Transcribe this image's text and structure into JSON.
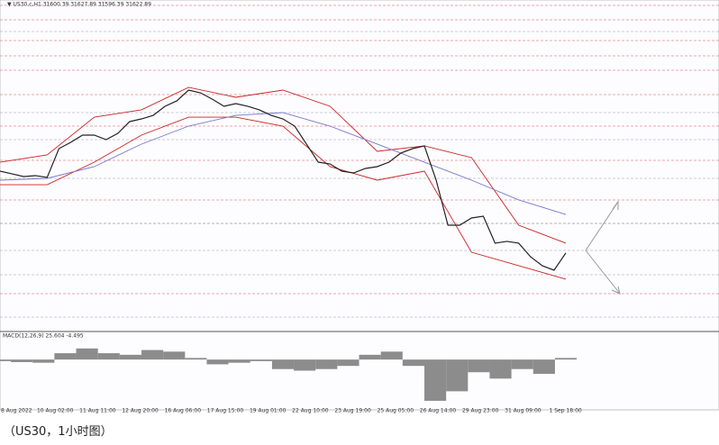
{
  "caption": "（US30，1小时图）",
  "chart_data": [
    {
      "type": "line",
      "title": "▼ US30.c,H1 31600.39 31627.89 31596.39 31622.89",
      "ylim": [
        30400,
        35700
      ],
      "xtick_labels": [
        "8 Aug 2022",
        "10 Aug 02:00",
        "11 Aug 11:00",
        "12 Aug 20:00",
        "16 Aug 06:00",
        "17 Aug 15:00",
        "19 Aug 01:00",
        "22 Aug 10:00",
        "23 Aug 19:00",
        "25 Aug 05:00",
        "26 Aug 14:00",
        "29 Aug 23:00",
        "31 Aug 09:00",
        "1 Sep 18:00"
      ],
      "series": [
        {
          "color": "#cc2222",
          "values": [
            33086,
            33203,
            33812,
            33929,
            34292,
            34132,
            34248,
            33987,
            33261,
            33348,
            33159,
            32070,
            31780
          ]
        },
        {
          "color": "#cc2222",
          "values": [
            32723,
            32723,
            33086,
            33522,
            33812,
            33812,
            33667,
            33014,
            32796,
            32941,
            31634,
            31417,
            31199
          ]
        },
        {
          "color": "#7777cc",
          "values": [
            32796,
            32825,
            33014,
            33377,
            33667,
            33841,
            33885,
            33667,
            33377,
            33086,
            32796,
            32477,
            32244
          ]
        },
        {
          "color": "#222222",
          "values": [
            32941,
            32898,
            32854,
            32869,
            32840,
            33304,
            33406,
            33522,
            33522,
            33449,
            33551,
            33740,
            33783,
            33841,
            33987,
            34074,
            34248,
            34204,
            34103,
            33987,
            34030,
            33987,
            33929,
            33841,
            33783,
            33667,
            33377,
            33086,
            33057,
            32941,
            32912,
            32985,
            33014,
            33086,
            33232,
            33304,
            33348,
            32796,
            32070,
            32070,
            32186,
            32215,
            31780,
            31809,
            31780,
            31562,
            31417,
            31344,
            31622
          ]
        }
      ]
    },
    {
      "type": "bar",
      "title": "MACD(12,26,9) 25.604 -4.495",
      "color": "#8c8c8c",
      "ylim": [
        -150,
        60
      ],
      "values": [
        -5,
        -8,
        -10,
        20,
        35,
        20,
        15,
        30,
        25,
        5,
        -15,
        -10,
        -5,
        -30,
        -35,
        -30,
        -20,
        15,
        25,
        -20,
        -130,
        -100,
        -40,
        -60,
        -30,
        -45,
        5
      ]
    }
  ]
}
